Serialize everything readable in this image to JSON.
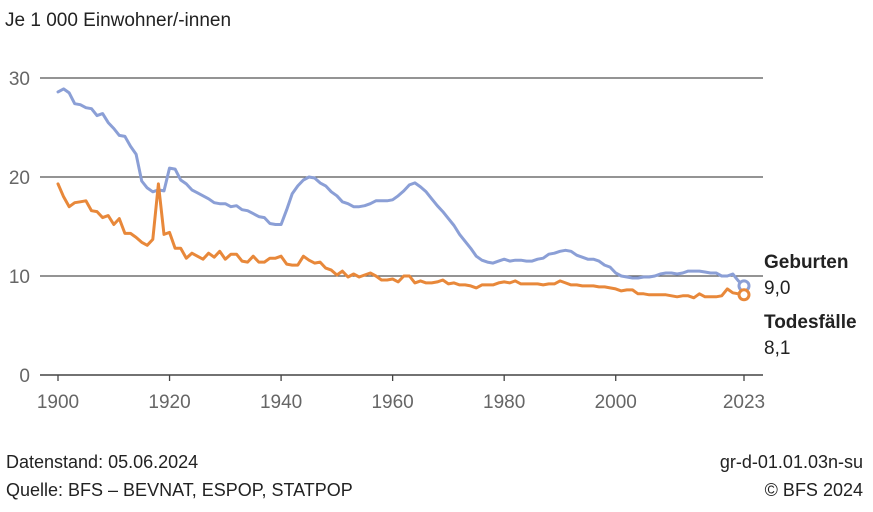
{
  "chart_data": {
    "type": "line",
    "ylabel": "Je 1 000 Einwohner/-innen",
    "xlim": [
      1900,
      2023
    ],
    "ylim": [
      0,
      30
    ],
    "yticks": [
      0,
      10,
      20,
      30
    ],
    "xticks": [
      1900,
      1920,
      1940,
      1960,
      1980,
      2000,
      2023
    ],
    "grid": true,
    "series": [
      {
        "name": "Geburten",
        "end_value_label": "9,0",
        "color": "#8b9fd6",
        "x": [
          1900,
          1901,
          1902,
          1903,
          1904,
          1905,
          1906,
          1907,
          1908,
          1909,
          1910,
          1911,
          1912,
          1913,
          1914,
          1915,
          1916,
          1917,
          1918,
          1919,
          1920,
          1921,
          1922,
          1923,
          1924,
          1925,
          1926,
          1927,
          1928,
          1929,
          1930,
          1931,
          1932,
          1933,
          1934,
          1935,
          1936,
          1937,
          1938,
          1939,
          1940,
          1941,
          1942,
          1943,
          1944,
          1945,
          1946,
          1947,
          1948,
          1949,
          1950,
          1951,
          1952,
          1953,
          1954,
          1955,
          1956,
          1957,
          1958,
          1959,
          1960,
          1961,
          1962,
          1963,
          1964,
          1965,
          1966,
          1967,
          1968,
          1969,
          1970,
          1971,
          1972,
          1973,
          1974,
          1975,
          1976,
          1977,
          1978,
          1979,
          1980,
          1981,
          1982,
          1983,
          1984,
          1985,
          1986,
          1987,
          1988,
          1989,
          1990,
          1991,
          1992,
          1993,
          1994,
          1995,
          1996,
          1997,
          1998,
          1999,
          2000,
          2001,
          2002,
          2003,
          2004,
          2005,
          2006,
          2007,
          2008,
          2009,
          2010,
          2011,
          2012,
          2013,
          2014,
          2015,
          2016,
          2017,
          2018,
          2019,
          2020,
          2021,
          2022,
          2023
        ],
        "y": [
          28.6,
          28.9,
          28.5,
          27.4,
          27.3,
          27.0,
          26.9,
          26.2,
          26.4,
          25.5,
          24.9,
          24.2,
          24.1,
          23.1,
          22.3,
          19.6,
          18.9,
          18.5,
          18.7,
          18.6,
          20.9,
          20.8,
          19.7,
          19.3,
          18.7,
          18.4,
          18.1,
          17.8,
          17.4,
          17.3,
          17.3,
          17.0,
          17.1,
          16.7,
          16.6,
          16.3,
          16.0,
          15.9,
          15.3,
          15.2,
          15.2,
          16.7,
          18.3,
          19.1,
          19.7,
          20.0,
          19.9,
          19.4,
          19.1,
          18.5,
          18.1,
          17.5,
          17.3,
          17.0,
          17.0,
          17.1,
          17.3,
          17.6,
          17.6,
          17.6,
          17.7,
          18.1,
          18.6,
          19.2,
          19.4,
          19.0,
          18.5,
          17.8,
          17.1,
          16.5,
          15.8,
          15.1,
          14.2,
          13.5,
          12.8,
          12.0,
          11.6,
          11.4,
          11.3,
          11.5,
          11.7,
          11.5,
          11.6,
          11.6,
          11.5,
          11.5,
          11.7,
          11.8,
          12.2,
          12.3,
          12.5,
          12.6,
          12.5,
          12.1,
          11.9,
          11.7,
          11.7,
          11.5,
          11.1,
          10.9,
          10.3,
          10.0,
          9.9,
          9.8,
          9.8,
          9.9,
          9.9,
          10.0,
          10.2,
          10.3,
          10.3,
          10.2,
          10.3,
          10.5,
          10.5,
          10.5,
          10.4,
          10.3,
          10.3,
          10.0,
          10.0,
          10.2,
          9.5,
          9.0
        ]
      },
      {
        "name": "Todesfälle",
        "end_value_label": "8,1",
        "color": "#e8883a",
        "x": [
          1900,
          1901,
          1902,
          1903,
          1904,
          1905,
          1906,
          1907,
          1908,
          1909,
          1910,
          1911,
          1912,
          1913,
          1914,
          1915,
          1916,
          1917,
          1918,
          1919,
          1920,
          1921,
          1922,
          1923,
          1924,
          1925,
          1926,
          1927,
          1928,
          1929,
          1930,
          1931,
          1932,
          1933,
          1934,
          1935,
          1936,
          1937,
          1938,
          1939,
          1940,
          1941,
          1942,
          1943,
          1944,
          1945,
          1946,
          1947,
          1948,
          1949,
          1950,
          1951,
          1952,
          1953,
          1954,
          1955,
          1956,
          1957,
          1958,
          1959,
          1960,
          1961,
          1962,
          1963,
          1964,
          1965,
          1966,
          1967,
          1968,
          1969,
          1970,
          1971,
          1972,
          1973,
          1974,
          1975,
          1976,
          1977,
          1978,
          1979,
          1980,
          1981,
          1982,
          1983,
          1984,
          1985,
          1986,
          1987,
          1988,
          1989,
          1990,
          1991,
          1992,
          1993,
          1994,
          1995,
          1996,
          1997,
          1998,
          1999,
          2000,
          2001,
          2002,
          2003,
          2004,
          2005,
          2006,
          2007,
          2008,
          2009,
          2010,
          2011,
          2012,
          2013,
          2014,
          2015,
          2016,
          2017,
          2018,
          2019,
          2020,
          2021,
          2022,
          2023
        ],
        "y": [
          19.3,
          18.0,
          17.0,
          17.4,
          17.5,
          17.6,
          16.6,
          16.5,
          15.9,
          16.1,
          15.2,
          15.8,
          14.3,
          14.3,
          13.9,
          13.4,
          13.1,
          13.7,
          19.3,
          14.2,
          14.4,
          12.8,
          12.8,
          11.8,
          12.3,
          12.0,
          11.7,
          12.3,
          11.9,
          12.5,
          11.7,
          12.2,
          12.2,
          11.5,
          11.4,
          12.0,
          11.4,
          11.4,
          11.8,
          11.8,
          12.0,
          11.2,
          11.1,
          11.1,
          12.0,
          11.6,
          11.3,
          11.4,
          10.8,
          10.6,
          10.1,
          10.5,
          9.9,
          10.2,
          9.9,
          10.1,
          10.3,
          10.0,
          9.6,
          9.6,
          9.7,
          9.4,
          10.0,
          10.0,
          9.3,
          9.5,
          9.3,
          9.3,
          9.4,
          9.6,
          9.2,
          9.3,
          9.1,
          9.1,
          9.0,
          8.8,
          9.1,
          9.1,
          9.1,
          9.3,
          9.4,
          9.3,
          9.5,
          9.2,
          9.2,
          9.2,
          9.2,
          9.1,
          9.2,
          9.2,
          9.5,
          9.3,
          9.1,
          9.1,
          9.0,
          9.0,
          9.0,
          8.9,
          8.9,
          8.8,
          8.7,
          8.5,
          8.6,
          8.6,
          8.2,
          8.2,
          8.1,
          8.1,
          8.1,
          8.1,
          8.0,
          7.9,
          8.0,
          8.0,
          7.8,
          8.2,
          7.9,
          7.9,
          7.9,
          8.0,
          8.7,
          8.3,
          8.2,
          8.1
        ]
      }
    ]
  },
  "footer": {
    "date_label": "Datenstand: 05.06.2024",
    "source_label": "Quelle: BFS – BEVNAT, ESPOP, STATPOP",
    "code_label": "gr-d-01.01.03n-su",
    "copyright_label": "© BFS 2024"
  }
}
